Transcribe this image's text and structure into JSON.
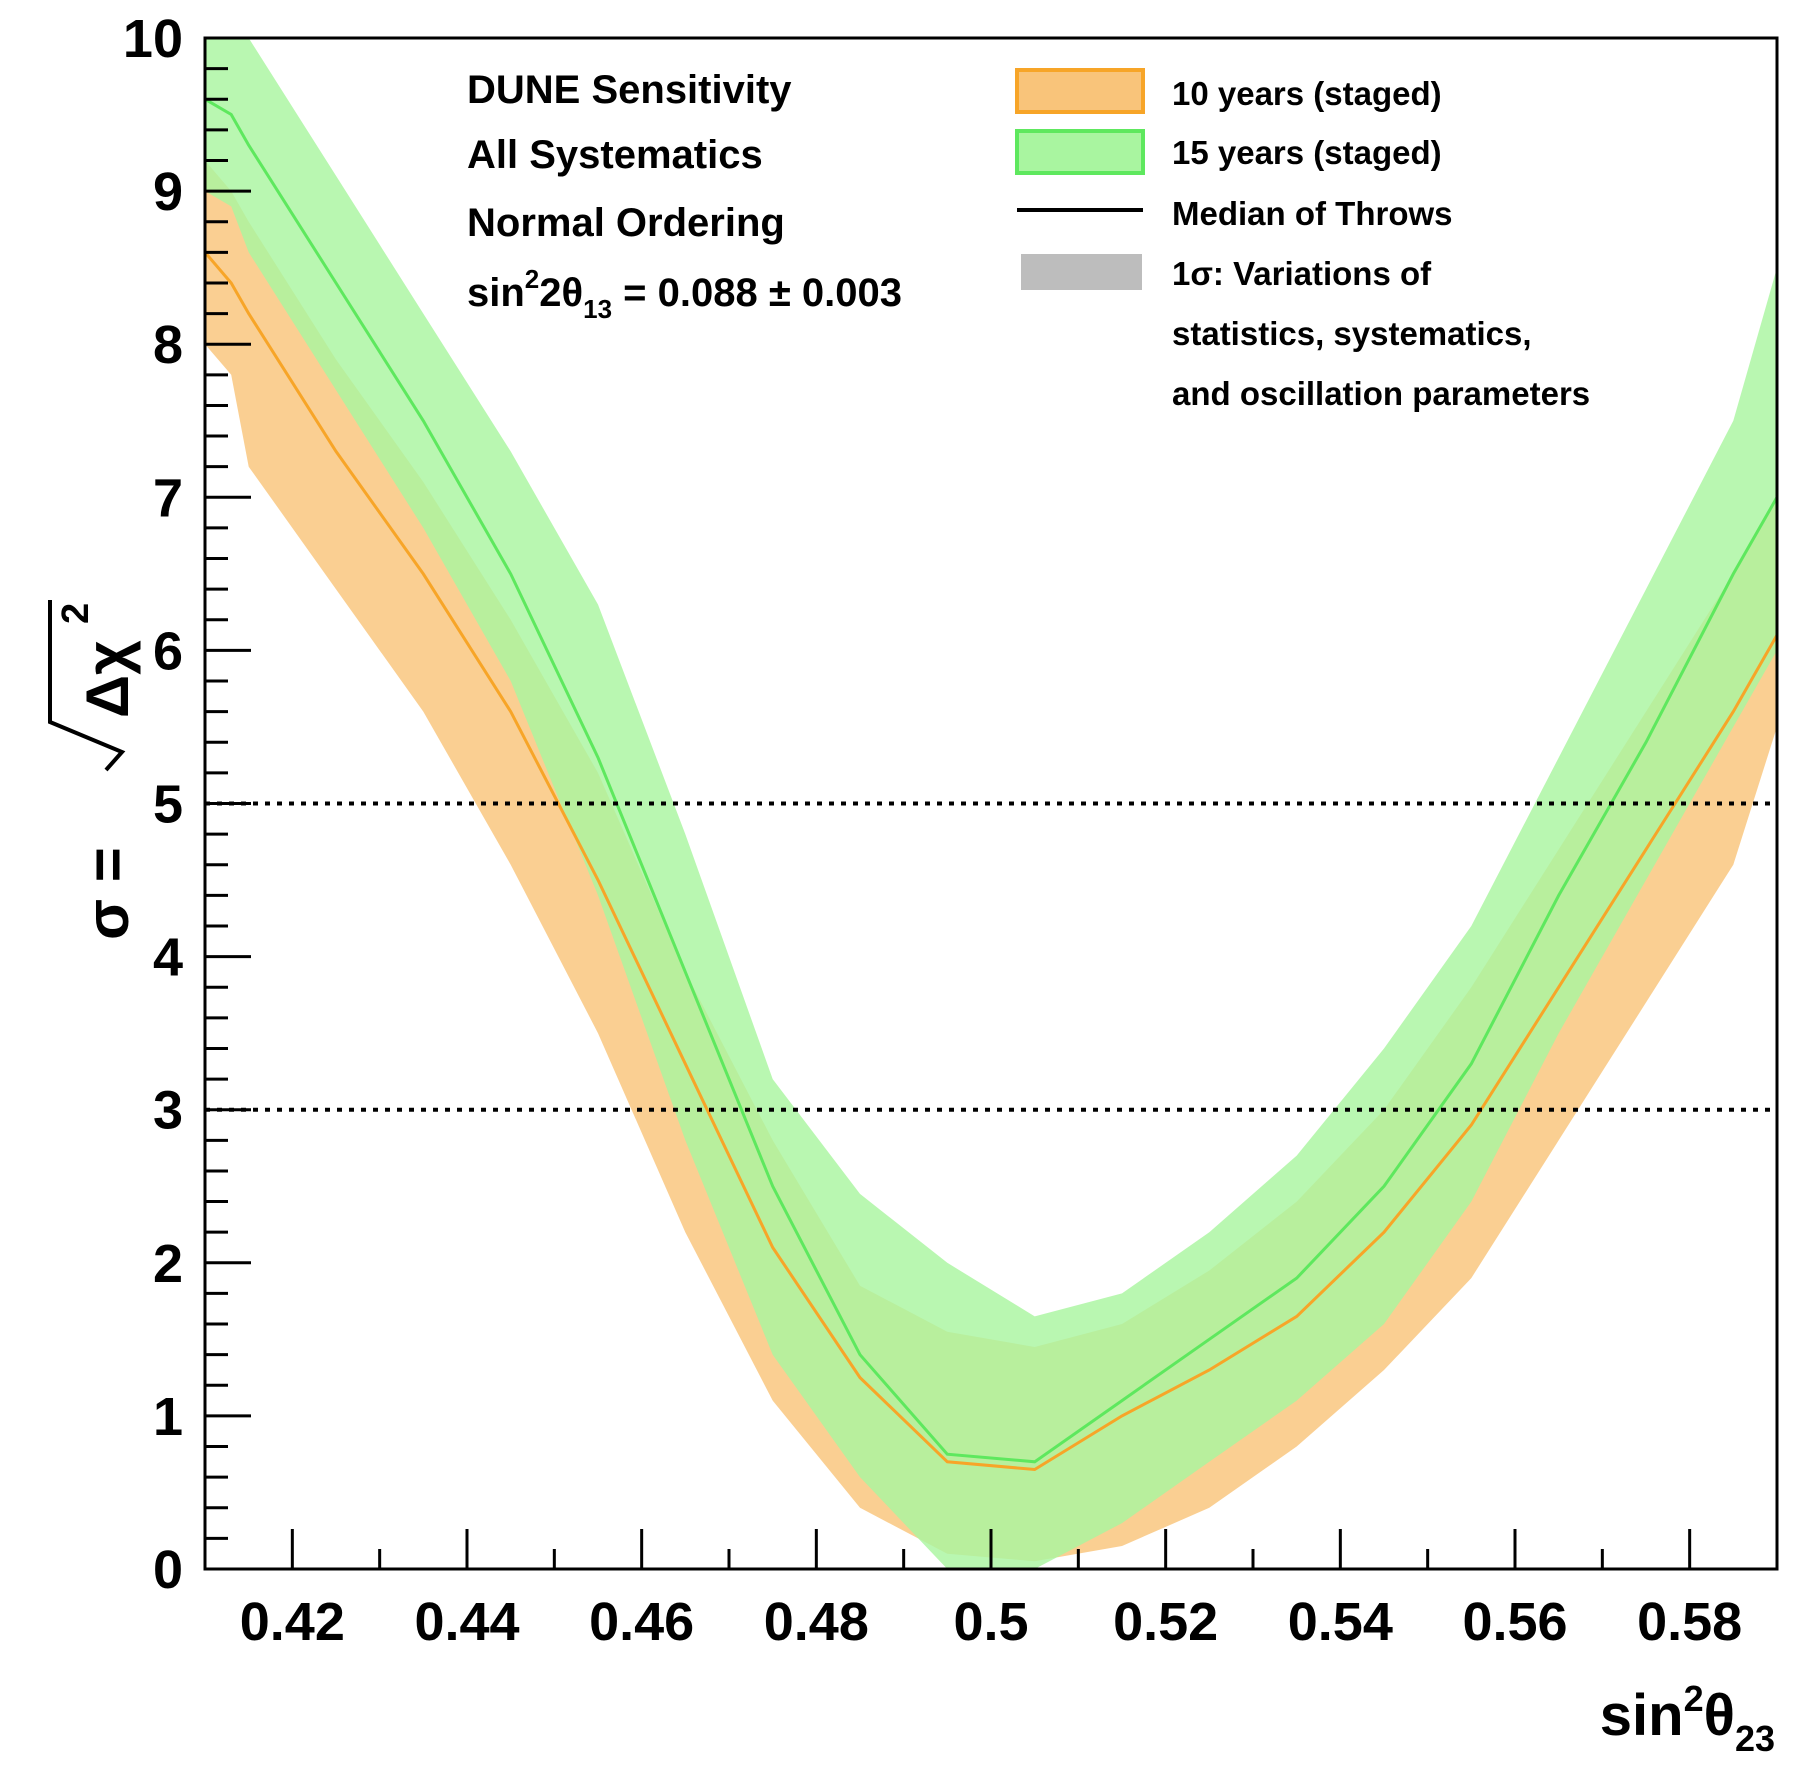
{
  "chart_data": {
    "type": "area",
    "xlabel": {
      "base": "sin",
      "sup": "2",
      "sym": "θ",
      "sub": "23"
    },
    "ylabel": {
      "lhs": "σ = ",
      "radicand": "Δχ",
      "sup": "2"
    },
    "xlim": [
      0.41,
      0.59
    ],
    "ylim": [
      0,
      10
    ],
    "x_ticks": [
      "0.42",
      "0.44",
      "0.46",
      "0.48",
      "0.5",
      "0.52",
      "0.54",
      "0.56",
      "0.58"
    ],
    "y_ticks": [
      "0",
      "1",
      "2",
      "3",
      "4",
      "5",
      "6",
      "7",
      "8",
      "9",
      "10"
    ],
    "reference_lines": [
      3,
      5
    ],
    "annotations": {
      "line1": "DUNE Sensitivity",
      "line2": "All Systematics",
      "line3": "Normal Ordering",
      "line4": {
        "base": "sin",
        "sup": "2",
        "mid": "2θ",
        "sub": "13",
        "tail": " = 0.088 ± 0.003"
      }
    },
    "legend": {
      "position": "top-right",
      "items": [
        "10 years (staged)",
        "15 years (staged)",
        "Median of Throws"
      ],
      "band_note": [
        "1σ: Variations of",
        "statistics, systematics,",
        "and oscillation parameters"
      ]
    },
    "x": [
      0.41,
      0.413,
      0.415,
      0.425,
      0.435,
      0.445,
      0.455,
      0.465,
      0.475,
      0.485,
      0.495,
      0.505,
      0.515,
      0.525,
      0.535,
      0.545,
      0.555,
      0.565,
      0.575,
      0.585,
      0.59
    ],
    "series": [
      {
        "name": "10 years (staged)",
        "color": "#f7a528",
        "fill": "#f9c47a",
        "median": [
          8.6,
          8.4,
          8.2,
          7.3,
          6.5,
          5.6,
          4.5,
          3.3,
          2.1,
          1.25,
          0.7,
          0.65,
          1.0,
          1.3,
          1.65,
          2.2,
          2.9,
          3.8,
          4.7,
          5.6,
          6.1
        ],
        "upper": [
          9.2,
          9.0,
          8.8,
          7.9,
          7.1,
          6.2,
          5.2,
          3.9,
          2.8,
          1.85,
          1.55,
          1.45,
          1.6,
          1.95,
          2.4,
          3.0,
          3.8,
          4.7,
          5.6,
          6.5,
          7.0
        ],
        "lower": [
          8.0,
          7.8,
          7.2,
          6.4,
          5.6,
          4.6,
          3.5,
          2.2,
          1.1,
          0.4,
          0.1,
          0.05,
          0.15,
          0.4,
          0.8,
          1.3,
          1.9,
          2.8,
          3.7,
          4.6,
          5.5
        ]
      },
      {
        "name": "15 years (staged)",
        "color": "#5ee85e",
        "fill": "#a9f5a0",
        "median": [
          9.6,
          9.5,
          9.3,
          8.4,
          7.5,
          6.5,
          5.3,
          3.9,
          2.5,
          1.4,
          0.75,
          0.7,
          1.1,
          1.5,
          1.9,
          2.5,
          3.3,
          4.4,
          5.4,
          6.5,
          7.0
        ],
        "upper": [
          10.2,
          10.1,
          10.0,
          9.1,
          8.2,
          7.3,
          6.3,
          4.8,
          3.2,
          2.45,
          2.0,
          1.65,
          1.8,
          2.2,
          2.7,
          3.4,
          4.2,
          5.3,
          6.4,
          7.5,
          8.5
        ],
        "lower": [
          9.0,
          8.9,
          8.6,
          7.7,
          6.8,
          5.8,
          4.4,
          2.8,
          1.4,
          0.6,
          0.0,
          0.0,
          0.3,
          0.7,
          1.1,
          1.6,
          2.4,
          3.5,
          4.5,
          5.5,
          6.0
        ]
      }
    ]
  }
}
